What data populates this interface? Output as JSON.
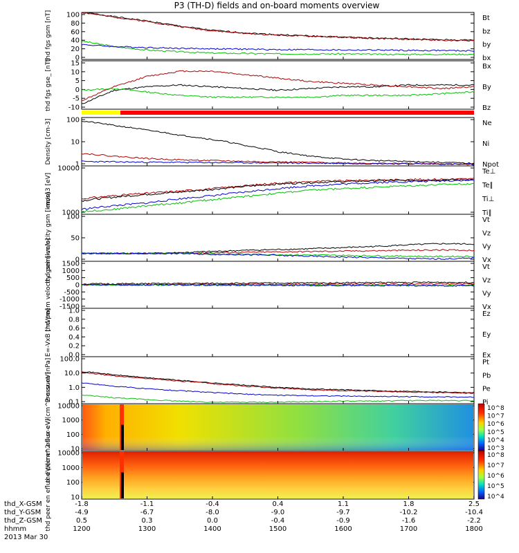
{
  "title": "P3 (TH-D) fields and on-board moments overview",
  "chart_data": [
    {
      "type": "line",
      "ylabel": "thd fgs gsm [nT]",
      "ylim": [
        -10,
        100
      ],
      "yticks": [
        "100",
        "80",
        "60",
        "40",
        "20",
        "0"
      ],
      "legend": [
        {
          "name": "Bt",
          "color": "#000000"
        },
        {
          "name": "bz",
          "color": "#b00000"
        },
        {
          "name": "by",
          "color": "#00c000"
        },
        {
          "name": "bx",
          "color": "#0000d0"
        }
      ],
      "series": [
        {
          "name": "Bt",
          "color": "#000000",
          "values": [
            101,
            90,
            80,
            68,
            58,
            52,
            48,
            45,
            42,
            40,
            38,
            36,
            35
          ]
        },
        {
          "name": "bz",
          "color": "#b00000",
          "values": [
            100,
            89,
            79,
            67,
            57,
            51,
            47,
            44,
            42,
            39,
            37,
            35,
            34
          ]
        },
        {
          "name": "by",
          "color": "#00c000",
          "values": [
            33,
            20,
            12,
            8,
            5,
            4,
            3,
            3,
            3,
            2,
            2,
            2,
            2
          ]
        },
        {
          "name": "bx",
          "color": "#0000d0",
          "values": [
            25,
            20,
            18,
            16,
            15,
            14,
            13,
            13,
            12,
            12,
            11,
            11,
            10
          ]
        }
      ]
    },
    {
      "type": "line",
      "ylabel": "thd fgs gse_ [nT]",
      "ylim": [
        -13,
        15
      ],
      "yticks": [
        "15",
        "10",
        "5",
        "0",
        "-5",
        "-10"
      ],
      "legend": [
        {
          "name": "Bx",
          "color": "#000000"
        },
        {
          "name": "By",
          "color": "#b00000"
        },
        {
          "name": "Bz",
          "color": "#00c000"
        }
      ],
      "series": [
        {
          "name": "Bx",
          "color": "#000000",
          "values": [
            -10,
            -2,
            0,
            1,
            0,
            -1,
            -2,
            -1,
            0,
            0,
            1,
            1,
            1
          ]
        },
        {
          "name": "By",
          "color": "#b00000",
          "values": [
            -8,
            0,
            6,
            9,
            9,
            7,
            5,
            3,
            2,
            1,
            0,
            -1,
            0
          ]
        },
        {
          "name": "Bz",
          "color": "#00c000",
          "values": [
            -2,
            -1,
            -3,
            -5,
            -6,
            -6,
            -6,
            -6,
            -5,
            -5,
            -5,
            -4,
            -3
          ]
        }
      ]
    },
    {
      "type": "line",
      "ylabel": "Density [cm-3]",
      "ylim": [
        0.6,
        150
      ],
      "scale": "log",
      "yticks": [
        "100",
        "10",
        "1"
      ],
      "legend": [
        {
          "name": "Ne",
          "color": "#b00000"
        },
        {
          "name": "Ni",
          "color": "#000000"
        },
        {
          "name": "Npot",
          "color": "#0000d0"
        }
      ],
      "series": [
        {
          "name": "Ni",
          "color": "#000000",
          "values": [
            100,
            60,
            35,
            20,
            12,
            6,
            3,
            1.8,
            1.3,
            1.1,
            1.0,
            0.9,
            0.8
          ]
        },
        {
          "name": "Ne",
          "color": "#b00000",
          "values": [
            2.5,
            1.8,
            1.4,
            1.2,
            1.1,
            1.0,
            0.95,
            0.9,
            0.85,
            0.8,
            0.8,
            0.75,
            0.7
          ]
        },
        {
          "name": "Npot",
          "color": "#0000d0",
          "values": [
            1.0,
            0.95,
            0.92,
            0.9,
            0.88,
            0.86,
            0.84,
            0.82,
            0.8,
            0.78,
            0.76,
            0.74,
            0.72
          ]
        }
      ]
    },
    {
      "type": "line",
      "ylabel": "mom3 [eV]",
      "ylim": [
        200,
        10000
      ],
      "scale": "log",
      "yticks": [
        "10000",
        "1000"
      ],
      "legend": [
        {
          "name": "Te⊥",
          "color": "#b00000"
        },
        {
          "name": "Te∥",
          "color": "#000000"
        },
        {
          "name": "Ti⊥",
          "color": "#0000d0"
        },
        {
          "name": "Ti∥",
          "color": "#00c000"
        }
      ],
      "series": [
        {
          "name": "Te⊥",
          "color": "#b00000",
          "values": [
            700,
            900,
            1100,
            1300,
            1600,
            2000,
            2500,
            2800,
            3000,
            3200,
            3300,
            3400,
            3500
          ]
        },
        {
          "name": "Te∥",
          "color": "#000000",
          "values": [
            600,
            800,
            1000,
            1200,
            1500,
            1900,
            2300,
            2600,
            2800,
            3000,
            3100,
            3200,
            3300
          ]
        },
        {
          "name": "Ti⊥",
          "color": "#0000d0",
          "values": [
            300,
            400,
            500,
            700,
            900,
            1200,
            1600,
            2000,
            2300,
            2600,
            2800,
            3000,
            3200
          ]
        },
        {
          "name": "Ti∥",
          "color": "#00c000",
          "values": [
            250,
            300,
            400,
            500,
            650,
            850,
            1100,
            1400,
            1600,
            1800,
            2000,
            2200,
            2400
          ]
        }
      ]
    },
    {
      "type": "line",
      "ylabel": "thd peim velocity gsm [km/s]",
      "ylim": [
        -20,
        100
      ],
      "yticks": [
        "100",
        "50",
        "0"
      ],
      "legend": [
        {
          "name": "Vt",
          "color": "#000000"
        },
        {
          "name": "Vz",
          "color": "#b00000"
        },
        {
          "name": "Vy",
          "color": "#00c000"
        },
        {
          "name": "Vx",
          "color": "#0000d0"
        }
      ],
      "series": [
        {
          "name": "Vt",
          "color": "#000000",
          "values": [
            0,
            0,
            0,
            2,
            5,
            8,
            10,
            12,
            15,
            18,
            22,
            25,
            24
          ]
        },
        {
          "name": "Vz",
          "color": "#b00000",
          "values": [
            0,
            0,
            0,
            1,
            2,
            3,
            4,
            5,
            6,
            7,
            8,
            9,
            8
          ]
        },
        {
          "name": "Vy",
          "color": "#00c000",
          "values": [
            0,
            0,
            0,
            0,
            -1,
            -2,
            -3,
            -4,
            -5,
            -6,
            -7,
            -8,
            -7
          ]
        },
        {
          "name": "Vx",
          "color": "#0000d0",
          "values": [
            0,
            0,
            0,
            0,
            -2,
            -3,
            -5,
            -7,
            -9,
            -11,
            -13,
            -14,
            -12
          ]
        }
      ]
    },
    {
      "type": "line",
      "ylabel": "thd peem velocity gsm [km/s]",
      "ylim": [
        -1500,
        1500
      ],
      "yticks": [
        "1500",
        "1000",
        "500",
        "0",
        "-500",
        "-1000",
        "-1500"
      ],
      "legend": [
        {
          "name": "Vt",
          "color": "#000000"
        },
        {
          "name": "Vz",
          "color": "#b00000"
        },
        {
          "name": "Vy",
          "color": "#00c000"
        },
        {
          "name": "Vx",
          "color": "#0000d0"
        }
      ],
      "series": [
        {
          "name": "Vt",
          "color": "#000000",
          "values": [
            50,
            60,
            70,
            80,
            90,
            100,
            110,
            120,
            130,
            140,
            150,
            160,
            150
          ]
        },
        {
          "name": "Vz",
          "color": "#b00000",
          "values": [
            0,
            10,
            15,
            20,
            20,
            25,
            30,
            35,
            40,
            45,
            50,
            55,
            50
          ]
        },
        {
          "name": "Vy",
          "color": "#00c000",
          "values": [
            0,
            -10,
            -10,
            -15,
            -20,
            -20,
            -25,
            -30,
            -35,
            -40,
            -45,
            -50,
            -45
          ]
        },
        {
          "name": "Vx",
          "color": "#0000d0",
          "values": [
            0,
            -5,
            -10,
            -15,
            -20,
            -25,
            -30,
            -35,
            -40,
            -45,
            -50,
            -55,
            -50
          ]
        }
      ]
    },
    {
      "type": "line",
      "ylabel": "E=-VxB [mV/m]",
      "ylim": [
        0,
        1
      ],
      "yticks": [
        "1.0",
        "0.8",
        "0.6",
        "0.4",
        "0.2",
        "0.0"
      ],
      "legend": [
        {
          "name": "Ez",
          "color": "#b00000"
        },
        {
          "name": "Ey",
          "color": "#00c000"
        },
        {
          "name": "Ex",
          "color": "#0000d0"
        }
      ],
      "series": []
    },
    {
      "type": "line",
      "ylabel": "Pressure [nPa]",
      "ylim": [
        0.08,
        120
      ],
      "scale": "log",
      "yticks": [
        "100.0",
        "10.0",
        "1.0",
        "0.1"
      ],
      "legend": [
        {
          "name": "Pt",
          "color": "#000000"
        },
        {
          "name": "Pb",
          "color": "#b00000"
        },
        {
          "name": "Pe",
          "color": "#00c000"
        },
        {
          "name": "Pi",
          "color": "#0000d0"
        }
      ],
      "series": [
        {
          "name": "Pt",
          "color": "#000000",
          "values": [
            12,
            7,
            4.5,
            3,
            2,
            1.4,
            1.0,
            0.8,
            0.7,
            0.6,
            0.55,
            0.5,
            0.45
          ]
        },
        {
          "name": "Pb",
          "color": "#b00000",
          "values": [
            10,
            6,
            4,
            2.7,
            1.8,
            1.2,
            0.9,
            0.7,
            0.6,
            0.55,
            0.5,
            0.45,
            0.4
          ]
        },
        {
          "name": "Pe",
          "color": "#00c000",
          "values": [
            0.3,
            0.2,
            0.15,
            0.12,
            0.1,
            0.1,
            0.1,
            0.11,
            0.12,
            0.12,
            0.13,
            0.13,
            0.13
          ]
        },
        {
          "name": "Pi",
          "color": "#0000d0",
          "values": [
            2,
            1.2,
            0.8,
            0.6,
            0.45,
            0.35,
            0.3,
            0.28,
            0.26,
            0.25,
            0.24,
            0.23,
            0.22
          ]
        }
      ]
    },
    {
      "type": "heatmap",
      "ylabel": "thd peir en eflux eV/(cm^2-s-sr-eV)",
      "yticks": [
        "10000",
        "1000",
        "100",
        "10"
      ],
      "colorbar_ticks": [
        "10^8",
        "10^7",
        "10^6",
        "10^5",
        "10^4",
        "10^3"
      ]
    },
    {
      "type": "heatmap",
      "ylabel": "thd peer en eflux eV/(cm^2-s-sr-eV)",
      "yticks": [
        "10000",
        "1000",
        "100",
        "10"
      ],
      "colorbar_ticks": [
        "10^8",
        "10^7",
        "10^6",
        "10^5",
        "10^4"
      ]
    }
  ],
  "x_axis": {
    "labels": [
      "thd_X-GSM",
      "thd_Y-GSM",
      "thd_Z-GSM",
      "hhmm",
      "2013 Mar 30"
    ],
    "ticks": [
      {
        "x": "-1.8",
        "y": "-4.9",
        "z": "0.5",
        "hhmm": "1200"
      },
      {
        "x": "-1.1",
        "y": "-6.7",
        "z": "0.3",
        "hhmm": "1300"
      },
      {
        "x": "-0.4",
        "y": "-8.0",
        "z": "0.0",
        "hhmm": "1400"
      },
      {
        "x": "0.4",
        "y": "-9.0",
        "z": "-0.4",
        "hhmm": "1500"
      },
      {
        "x": "1.1",
        "y": "-9.7",
        "z": "-0.9",
        "hhmm": "1600"
      },
      {
        "x": "1.8",
        "y": "-10.2",
        "z": "-1.6",
        "hhmm": "1700"
      },
      {
        "x": "2.5",
        "y": "-10.4",
        "z": "-2.2",
        "hhmm": "1800"
      }
    ]
  }
}
